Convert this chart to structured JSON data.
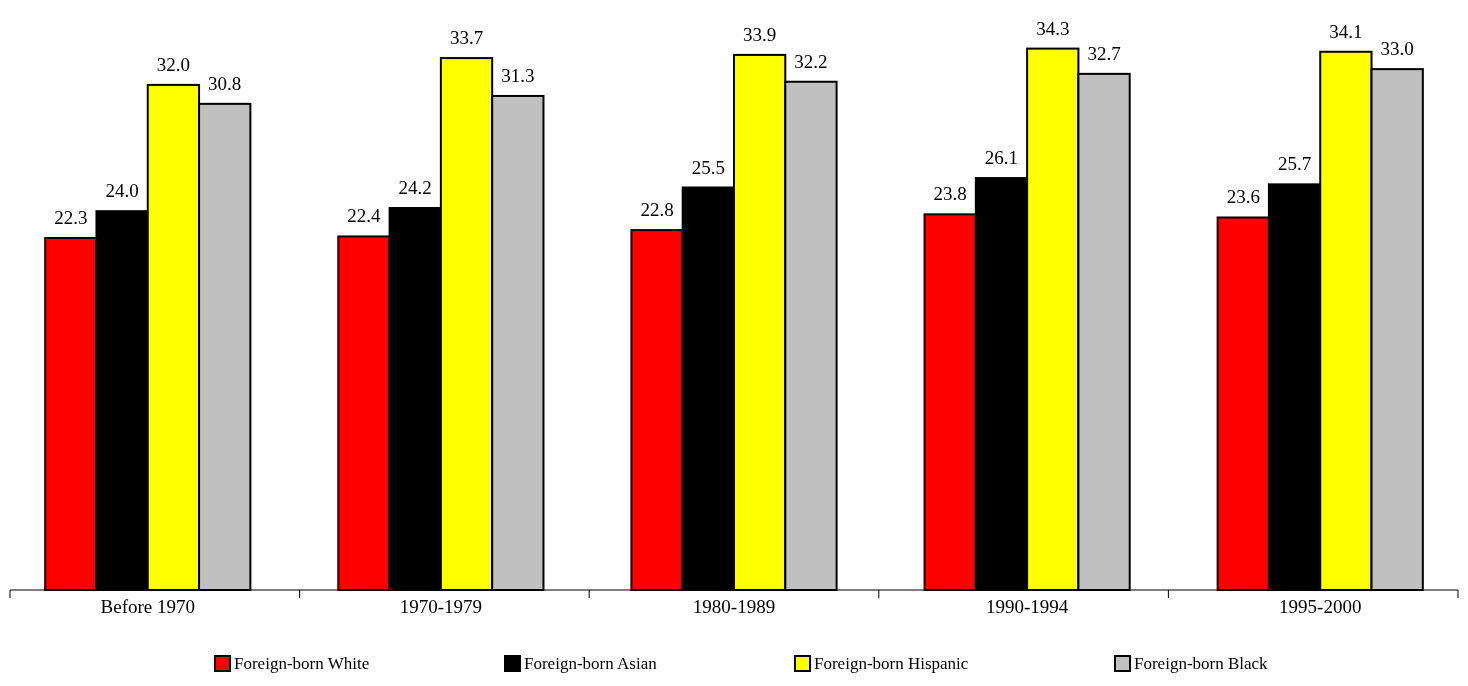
{
  "chart_data": {
    "type": "bar",
    "categories": [
      "Before 1970",
      "1970-1979",
      "1980-1989",
      "1990-1994",
      "1995-2000"
    ],
    "series": [
      {
        "name": "Foreign-born White",
        "color": "#ff0000",
        "values": [
          22.3,
          22.4,
          22.8,
          23.8,
          23.6
        ],
        "value_labels": [
          "22.3",
          "22.4",
          "22.8",
          "23.8",
          "23.6"
        ]
      },
      {
        "name": "Foreign-born Asian",
        "color": "#000000",
        "values": [
          24.0,
          24.2,
          25.5,
          26.1,
          25.7
        ],
        "value_labels": [
          "24.0",
          "24.2",
          "25.5",
          "26.1",
          "25.7"
        ]
      },
      {
        "name": "Foreign-born Hispanic",
        "color": "#ffff00",
        "values": [
          32.0,
          33.7,
          33.9,
          34.3,
          34.1
        ],
        "value_labels": [
          "32.0",
          "33.7",
          "33.9",
          "34.3",
          "34.1"
        ]
      },
      {
        "name": "Foreign-born Black",
        "color": "#c0c0c0",
        "values": [
          30.8,
          31.3,
          32.2,
          32.7,
          33.0
        ],
        "value_labels": [
          "30.8",
          "31.3",
          "32.2",
          "32.7",
          "33.0"
        ]
      }
    ],
    "legend": "bottom",
    "tick_labels": "x"
  }
}
